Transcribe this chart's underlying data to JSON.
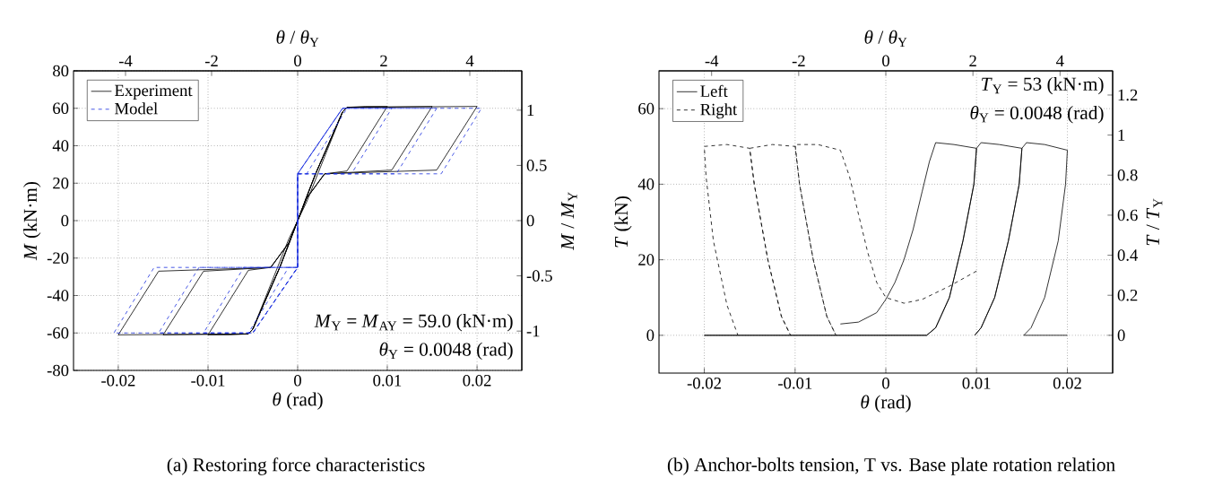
{
  "chart_data": [
    {
      "type": "line",
      "title": "(a) Restoring force characteristics",
      "xlabel": "*θ* (rad)",
      "ylabel": "*M* (kN·m)",
      "x2label": "*θ* / *θ*$_{Y}$",
      "y2label": "*M* / *M*$_{Y}$",
      "xlim": [
        -0.025,
        0.025
      ],
      "xticks": [
        -0.02,
        -0.01,
        0,
        0.01,
        0.02
      ],
      "ylim": [
        -80,
        80
      ],
      "yticks": [
        -80,
        -60,
        -40,
        -20,
        0,
        20,
        40,
        60,
        80
      ],
      "x2lim": [
        -5.2083,
        5.2083
      ],
      "x2ticks": [
        -4,
        -2,
        0,
        2,
        4
      ],
      "y2lim": [
        -1.3559,
        1.3559
      ],
      "y2ticks": [
        -1,
        -0.5,
        0,
        0.5,
        1
      ],
      "grid": true,
      "legend": "top left",
      "annotations": [
        "*M*$_{Y}$ = *M*$_{AY}$ = 59.0 (kN·m)",
        "*θ*$_{Y}$ = 0.0048 (rad)"
      ],
      "series": [
        {
          "name": "Experiment",
          "color": "#000000",
          "line_style": "solid",
          "x": [
            0,
            0.001,
            0.002,
            0.003,
            0.004,
            0.005,
            0.0035,
            0.002,
            0.001,
            0,
            -0.001,
            -0.002,
            -0.003,
            -0.004,
            -0.005,
            -0.0035,
            -0.002,
            -0.001,
            0,
            0.002,
            0.005,
            0.0055,
            0.0075,
            0.01,
            0.0055,
            0.003,
            0.001,
            0,
            -0.002,
            -0.005,
            -0.0055,
            -0.0075,
            -0.01,
            -0.0055,
            -0.003,
            -0.001,
            0,
            0.002,
            0.005,
            0.0055,
            0.015,
            0.0105,
            0.003,
            0.001,
            0,
            -0.002,
            -0.005,
            -0.0055,
            -0.015,
            -0.0105,
            -0.003,
            -0.001,
            0,
            0.002,
            0.005,
            0.0055,
            0.02,
            0.0155,
            0.003,
            0.001,
            0,
            -0.002,
            -0.005,
            -0.0055,
            -0.02,
            -0.0155,
            -0.003,
            -0.001
          ],
          "values": [
            0,
            13,
            25,
            36,
            47,
            58,
            40,
            22,
            10,
            0,
            -13,
            -25,
            -36,
            -47,
            -58,
            -40,
            -22,
            -10,
            0,
            25,
            58,
            60.5,
            61,
            61,
            26.5,
            25,
            12,
            0,
            -25,
            -58,
            -60.5,
            -61,
            -61,
            -26.5,
            -25,
            -12,
            0,
            25,
            58,
            60.5,
            61,
            27,
            25,
            12,
            0,
            -25,
            -58,
            -60.5,
            -61,
            -27,
            -25,
            -12,
            0,
            25,
            58,
            60.5,
            61,
            27,
            25,
            12,
            0,
            -25,
            -58,
            -60.5,
            -61,
            -27,
            -25,
            -12
          ]
        },
        {
          "name": "Model",
          "color": "#1a2fe0",
          "line_style": "dashed",
          "x": [
            0,
            0.005,
            0.0055,
            0.001,
            0,
            0,
            -0.005,
            -0.0055,
            -0.001,
            0,
            0,
            0.005,
            0.0105,
            0.006,
            0,
            0,
            -0.005,
            -0.0105,
            -0.006,
            0,
            0,
            0.005,
            0.0155,
            0.011,
            0,
            0,
            -0.005,
            -0.0155,
            -0.011,
            0,
            0,
            0.005,
            0.0205,
            0.016,
            0,
            0,
            -0.005,
            -0.0205,
            -0.016,
            0
          ],
          "values": [
            25,
            60,
            60,
            25,
            25,
            -25,
            -60,
            -60,
            -25,
            -25,
            25,
            60,
            60,
            25,
            25,
            -25,
            -60,
            -60,
            -25,
            -25,
            25,
            60,
            60,
            25,
            25,
            -25,
            -60,
            -60,
            -25,
            -25,
            25,
            60,
            60,
            25,
            25,
            -25,
            -60,
            -60,
            -25,
            -25
          ]
        }
      ]
    },
    {
      "type": "line",
      "title": "(b) Anchor-bolts tension, T vs. Base plate rotation relation",
      "xlabel": "*θ* (rad)",
      "ylabel": "*T* (kN)",
      "x2label": "*θ* / *θ*$_{Y}$",
      "y2label": "*T* / *T*$_{Y}$",
      "xlim": [
        -0.025,
        0.025
      ],
      "xticks": [
        -0.02,
        -0.01,
        0,
        0.01,
        0.02
      ],
      "ylim": [
        -10,
        70
      ],
      "yticks": [
        0,
        20,
        40,
        60
      ],
      "x2lim": [
        -5.2083,
        5.2083
      ],
      "x2ticks": [
        -4,
        -2,
        0,
        2,
        4
      ],
      "y2lim": [
        -0.1887,
        1.3208
      ],
      "y2ticks": [
        0,
        0.2,
        0.4,
        0.6,
        0.8,
        1,
        1.2
      ],
      "grid": true,
      "legend": "top left",
      "annotations": [
        "*T*$_{Y}$ = 53 (kN·m)",
        "*θ*$_{Y}$ = 0.0048 (rad)"
      ],
      "series": [
        {
          "name": "Left",
          "color": "#000000",
          "line_style": "solid",
          "x": [
            -0.005,
            -0.003,
            -0.001,
            0,
            0.001,
            0.002,
            0.003,
            0.004,
            0.0048,
            0.0055,
            0.0075,
            0.01,
            0.0097,
            0.0085,
            0.007,
            0.0055,
            0.0045,
            -0.02,
            0.0045,
            0.0055,
            0.007,
            0.0085,
            0.0097,
            0.01,
            0.0105,
            0.0125,
            0.015,
            0.0147,
            0.0135,
            0.012,
            0.0105,
            0.0098,
            0.0105,
            0.012,
            0.0135,
            0.0147,
            0.015,
            0.0155,
            0.0175,
            0.02,
            0.0198,
            0.019,
            0.0175,
            0.016,
            0.0152,
            0.02
          ],
          "values": [
            3,
            3.5,
            6,
            9.5,
            14,
            20,
            28,
            38,
            46,
            51,
            50.5,
            49.5,
            40,
            25,
            10,
            2,
            0,
            0,
            0,
            2,
            10,
            25,
            40,
            49.5,
            51,
            50.5,
            49.5,
            40,
            25,
            10,
            2,
            0,
            2,
            10,
            25,
            40,
            49.5,
            51,
            50.5,
            49,
            40,
            25,
            10,
            2,
            0,
            0
          ]
        },
        {
          "name": "Right",
          "color": "#000000",
          "line_style": "dashed",
          "x": [
            0.01,
            0.007,
            0.004,
            0.002,
            0,
            -0.001,
            -0.002,
            -0.003,
            -0.004,
            -0.005,
            -0.0075,
            -0.01,
            -0.0095,
            -0.008,
            -0.0065,
            -0.0055,
            -0.0065,
            -0.008,
            -0.0095,
            -0.01,
            -0.0125,
            -0.015,
            -0.0145,
            -0.013,
            -0.0115,
            -0.0105,
            -0.0115,
            -0.013,
            -0.0145,
            -0.015,
            -0.0175,
            -0.02,
            -0.0198,
            -0.019,
            -0.0175,
            -0.0163
          ],
          "values": [
            17,
            13,
            9.5,
            8.5,
            10,
            14,
            22,
            32,
            42,
            49,
            50.5,
            50.5,
            40,
            20,
            5,
            0,
            5,
            20,
            40,
            50,
            50.5,
            49.5,
            40,
            20,
            5,
            0,
            5,
            20,
            40,
            49.5,
            50.5,
            50,
            42,
            25,
            8,
            0
          ]
        }
      ]
    }
  ]
}
